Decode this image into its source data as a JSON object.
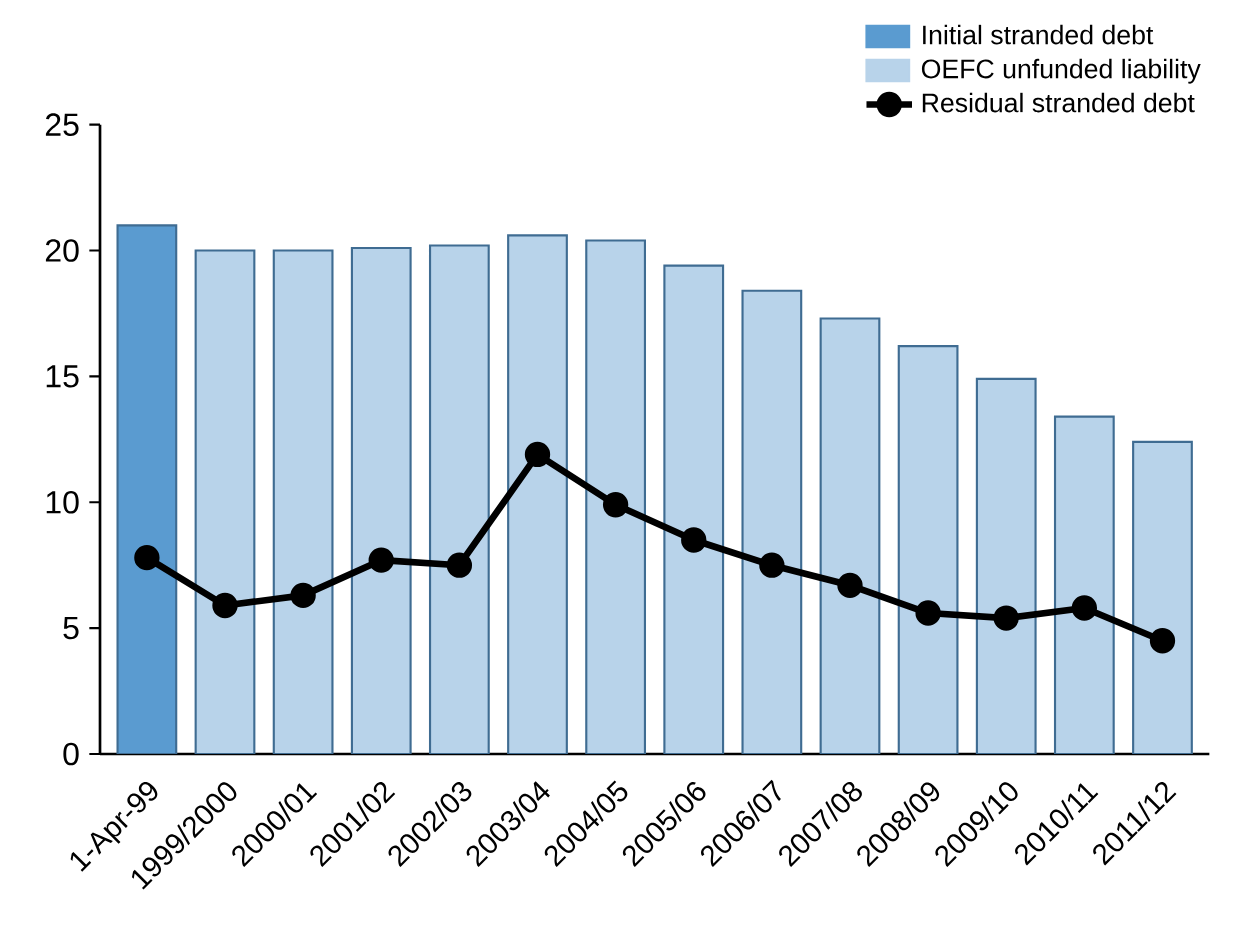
{
  "chart_data": {
    "type": "bar",
    "categories": [
      "1-Apr-99",
      "1999/2000",
      "2000/01",
      "2001/02",
      "2002/03",
      "2003/04",
      "2004/05",
      "2005/06",
      "2006/07",
      "2007/08",
      "2008/09",
      "2009/10",
      "2010/11",
      "2011/12"
    ],
    "series": [
      {
        "name": "Initial stranded debt",
        "color": "#5a9bd0",
        "values": [
          21.0,
          null,
          null,
          null,
          null,
          null,
          null,
          null,
          null,
          null,
          null,
          null,
          null,
          null
        ]
      },
      {
        "name": "OEFC unfunded liability",
        "color": "#b8d3ea",
        "values": [
          null,
          20.0,
          20.0,
          20.1,
          20.2,
          20.6,
          20.4,
          19.4,
          18.4,
          17.3,
          16.2,
          14.9,
          13.4,
          12.4
        ]
      },
      {
        "name": "Residual stranded debt",
        "type": "line",
        "color": "#000000",
        "marker": "circle",
        "values": [
          7.8,
          5.9,
          6.3,
          7.7,
          7.5,
          11.9,
          9.9,
          8.5,
          7.5,
          6.7,
          5.6,
          5.4,
          5.8,
          4.5
        ]
      }
    ],
    "ylim": [
      0,
      25
    ],
    "yticks": [
      0,
      5,
      10,
      15,
      20,
      25
    ],
    "legend": "top right"
  }
}
